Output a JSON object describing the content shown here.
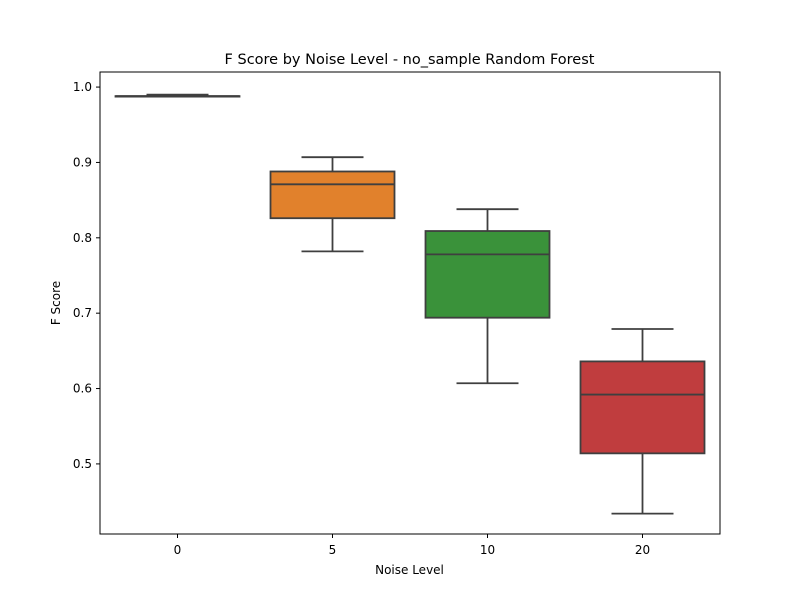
{
  "chart_data": {
    "type": "box",
    "title": "F Score by Noise Level - no_sample Random Forest",
    "xlabel": "Noise Level",
    "ylabel": "F Score",
    "categories": [
      "0",
      "5",
      "10",
      "20"
    ],
    "ylim": [
      0.407,
      1.02
    ],
    "yticks": [
      0.5,
      0.6,
      0.7,
      0.8,
      0.9,
      1.0
    ],
    "ytick_labels": [
      "0.5",
      "0.6",
      "0.7",
      "0.8",
      "0.9",
      "1.0"
    ],
    "grid": false,
    "legend": "none",
    "boxes": [
      {
        "category": "0",
        "whisker_low": 0.988,
        "q1": 0.988,
        "median": 0.988,
        "q3": 0.988,
        "whisker_high": 0.99,
        "color": "#3274a1"
      },
      {
        "category": "5",
        "whisker_low": 0.782,
        "q1": 0.826,
        "median": 0.871,
        "q3": 0.888,
        "whisker_high": 0.907,
        "color": "#e1812c"
      },
      {
        "category": "10",
        "whisker_low": 0.607,
        "q1": 0.694,
        "median": 0.778,
        "q3": 0.809,
        "whisker_high": 0.838,
        "color": "#3a923a"
      },
      {
        "category": "20",
        "whisker_low": 0.434,
        "q1": 0.514,
        "median": 0.592,
        "q3": 0.636,
        "whisker_high": 0.679,
        "color": "#c03d3e"
      }
    ]
  }
}
